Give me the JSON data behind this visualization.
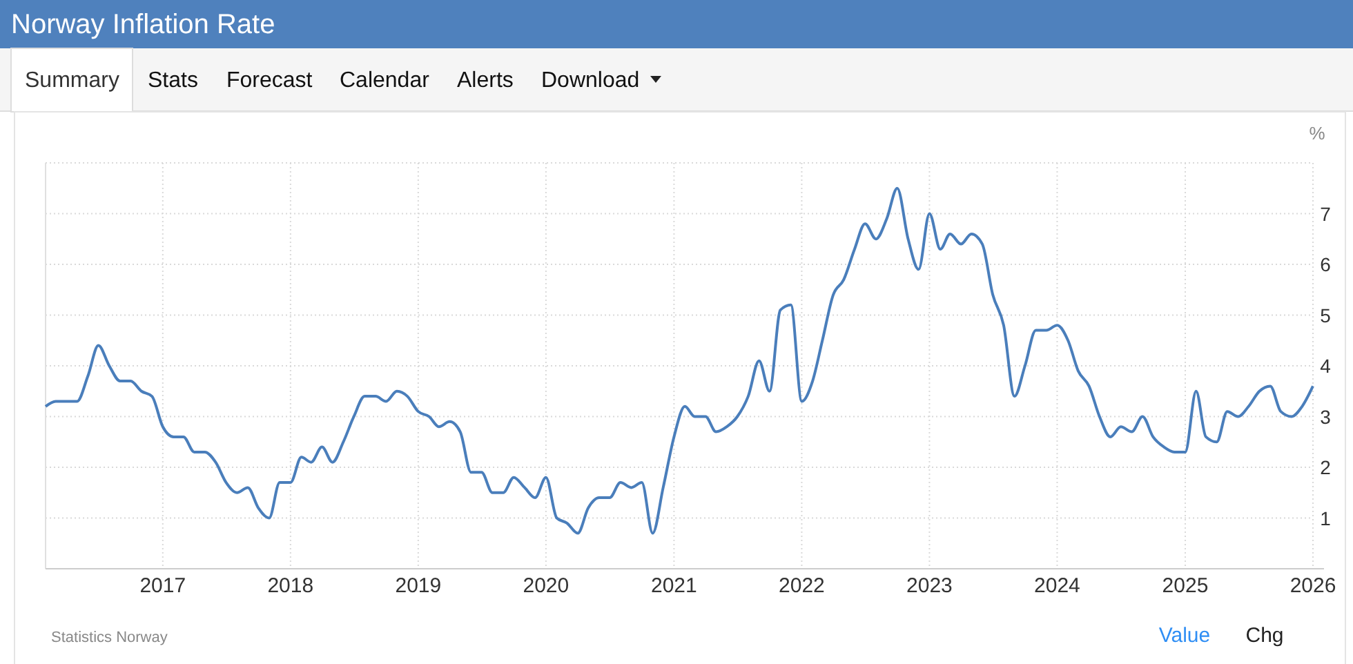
{
  "chart_data": {
    "type": "line",
    "title": "Norway Inflation Rate",
    "ylabel": "%",
    "x": [
      "2016-02",
      "2016-03",
      "2016-04",
      "2016-05",
      "2016-06",
      "2016-07",
      "2016-08",
      "2016-09",
      "2016-10",
      "2016-11",
      "2016-12",
      "2017-01",
      "2017-02",
      "2017-03",
      "2017-04",
      "2017-05",
      "2017-06",
      "2017-07",
      "2017-08",
      "2017-09",
      "2017-10",
      "2017-11",
      "2017-12",
      "2018-01",
      "2018-02",
      "2018-03",
      "2018-04",
      "2018-05",
      "2018-06",
      "2018-07",
      "2018-08",
      "2018-09",
      "2018-10",
      "2018-11",
      "2018-12",
      "2019-01",
      "2019-02",
      "2019-03",
      "2019-04",
      "2019-05",
      "2019-06",
      "2019-07",
      "2019-08",
      "2019-09",
      "2019-10",
      "2019-11",
      "2019-12",
      "2020-01",
      "2020-02",
      "2020-03",
      "2020-04",
      "2020-05",
      "2020-06",
      "2020-07",
      "2020-08",
      "2020-09",
      "2020-10",
      "2020-11",
      "2020-12",
      "2021-01",
      "2021-02",
      "2021-03",
      "2021-04",
      "2021-05",
      "2021-06",
      "2021-07",
      "2021-08",
      "2021-09",
      "2021-10",
      "2021-11",
      "2021-12",
      "2022-01",
      "2022-02",
      "2022-03",
      "2022-04",
      "2022-05",
      "2022-06",
      "2022-07",
      "2022-08",
      "2022-09",
      "2022-10",
      "2022-11",
      "2022-12",
      "2023-01",
      "2023-02",
      "2023-03",
      "2023-04",
      "2023-05",
      "2023-06",
      "2023-07",
      "2023-08",
      "2023-09",
      "2023-10",
      "2023-11",
      "2023-12",
      "2024-01",
      "2024-02",
      "2024-03",
      "2024-04",
      "2024-05",
      "2024-06",
      "2024-07",
      "2024-08",
      "2024-09",
      "2024-10",
      "2024-11",
      "2024-12",
      "2025-01",
      "2025-02",
      "2025-03",
      "2025-04",
      "2025-05",
      "2025-06",
      "2025-07",
      "2025-08",
      "2025-09",
      "2025-10",
      "2025-11",
      "2025-12",
      "2026-01"
    ],
    "series": [
      {
        "color": "#4a7ebb",
        "values": [
          3.2,
          3.3,
          3.3,
          3.3,
          3.8,
          4.4,
          4.0,
          3.7,
          3.7,
          3.5,
          3.4,
          2.8,
          2.6,
          2.6,
          2.3,
          2.3,
          2.1,
          1.7,
          1.5,
          1.6,
          1.2,
          1.0,
          1.7,
          1.7,
          2.2,
          2.1,
          2.4,
          2.1,
          2.5,
          3.0,
          3.4,
          3.4,
          3.3,
          3.5,
          3.4,
          3.1,
          3.0,
          2.8,
          2.9,
          2.7,
          1.9,
          1.9,
          1.5,
          1.5,
          1.8,
          1.6,
          1.4,
          1.8,
          1.0,
          0.9,
          0.7,
          1.2,
          1.4,
          1.4,
          1.7,
          1.6,
          1.7,
          0.7,
          1.6,
          2.6,
          3.2,
          3.0,
          3.0,
          2.7,
          2.8,
          3.0,
          3.4,
          4.1,
          3.5,
          5.1,
          5.2,
          3.3,
          3.7,
          4.5,
          5.4,
          5.7,
          6.3,
          6.8,
          6.5,
          6.9,
          7.5,
          6.5,
          5.9,
          7.0,
          6.3,
          6.6,
          6.4,
          6.6,
          6.4,
          5.4,
          4.8,
          3.4,
          4.0,
          4.7,
          4.7,
          4.8,
          4.5,
          3.9,
          3.6,
          3.0,
          2.6,
          2.8,
          2.7,
          3.0,
          2.6,
          2.4,
          2.3,
          2.3,
          3.5,
          2.6,
          2.5,
          3.1,
          3.0,
          3.2,
          3.5,
          3.6,
          3.1,
          3.0,
          3.2,
          3.6
        ]
      }
    ],
    "xlim": [
      "2016-02",
      "2026-01"
    ],
    "xticks": [
      "2017",
      "2018",
      "2019",
      "2020",
      "2021",
      "2022",
      "2023",
      "2024",
      "2025",
      "2026"
    ],
    "ylim": [
      0,
      8
    ],
    "yticks": [
      1,
      2,
      3,
      4,
      5,
      6,
      7,
      {
        "value": 8,
        "label": null
      }
    ],
    "grid": true,
    "annotations": [
      "Statistics Norway",
      "Summary",
      "Stats",
      "Forecast",
      "Calendar",
      "Alerts",
      "Download",
      "Value",
      "Chg"
    ]
  }
}
